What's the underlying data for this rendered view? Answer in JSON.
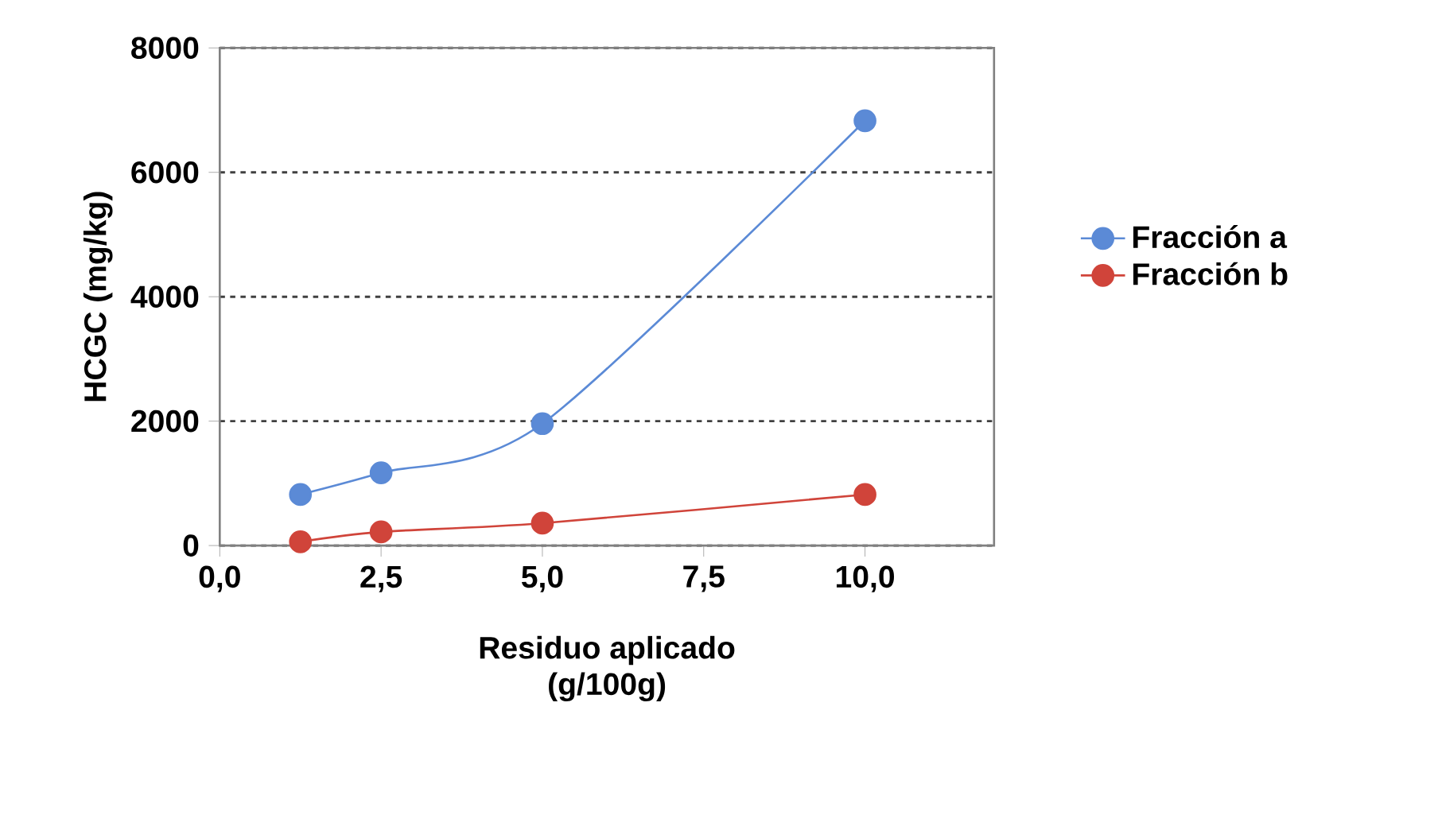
{
  "chart_data": {
    "type": "line",
    "xlabel": "Residuo aplicado\n(g/100g)",
    "ylabel": "HCGC (mg/kg)",
    "xlim": [
      0,
      12
    ],
    "ylim": [
      0,
      8000
    ],
    "xticks": [
      {
        "value": 0,
        "label": "0,0"
      },
      {
        "value": 2.5,
        "label": "2,5"
      },
      {
        "value": 5,
        "label": "5,0"
      },
      {
        "value": 7.5,
        "label": "7,5"
      },
      {
        "value": 10,
        "label": "10,0"
      }
    ],
    "yticks": [
      0,
      2000,
      4000,
      6000,
      8000
    ],
    "x": [
      1.25,
      2.5,
      5,
      10
    ],
    "series": [
      {
        "name": "Fracción a",
        "color": "#5b8ad6",
        "values": [
          820,
          1170,
          1960,
          6830
        ]
      },
      {
        "name": "Fracción b",
        "color": "#d0443a",
        "values": [
          60,
          220,
          360,
          820
        ]
      }
    ],
    "grid": "y",
    "legend": "right",
    "marker": "circle",
    "line_style": "solid"
  }
}
